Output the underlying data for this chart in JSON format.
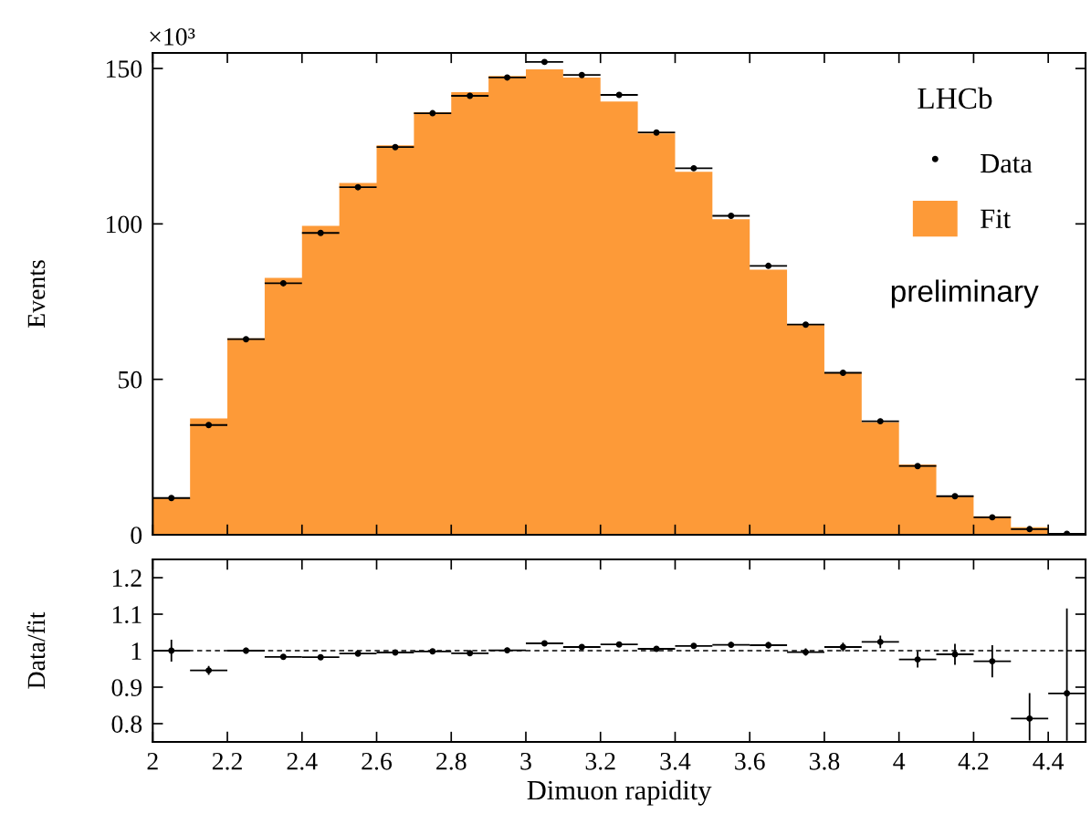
{
  "chart_data": [
    {
      "type": "histogram",
      "ylabel": "Events",
      "bins": [
        2,
        2.1,
        2.2,
        2.3,
        2.4,
        2.5,
        2.6,
        2.7,
        2.8,
        2.9,
        3,
        3.1,
        3.2,
        3.3,
        3.4,
        3.5,
        3.6,
        3.7,
        3.8,
        3.9,
        4,
        4.1,
        4.2,
        4.3,
        4.4,
        4.5
      ],
      "series": [
        {
          "name": "Fit",
          "color": "#fd9a38",
          "values": [
            11.8,
            37.4,
            63.2,
            82.6,
            99.4,
            113.2,
            125.3,
            135.9,
            142.4,
            147.6,
            149.7,
            147.1,
            139.4,
            129.1,
            116.8,
            101.5,
            85.3,
            67.6,
            52.1,
            36.2,
            22.6,
            12.6,
            5.9,
            2.4,
            0.6
          ]
        },
        {
          "name": "Data",
          "type": "scatter",
          "color": "#000000",
          "x": [
            2.05,
            2.15,
            2.25,
            2.35,
            2.45,
            2.55,
            2.65,
            2.75,
            2.85,
            2.95,
            3.05,
            3.15,
            3.25,
            3.35,
            3.45,
            3.55,
            3.65,
            3.75,
            3.85,
            3.95,
            4.05,
            4.15,
            4.25,
            4.35,
            4.45
          ],
          "values": [
            11.8,
            35.3,
            62.9,
            80.9,
            97.1,
            111.8,
            124.7,
            135.6,
            141.2,
            147.1,
            152.1,
            147.9,
            141.5,
            129.4,
            117.9,
            102.6,
            86.5,
            67.6,
            52.1,
            36.5,
            22.1,
            12.4,
            5.6,
            1.8,
            0.3
          ],
          "xerrors": [
            0.05,
            0.05,
            0.05,
            0.05,
            0.05,
            0.05,
            0.05,
            0.05,
            0.05,
            0.05,
            0.05,
            0.05,
            0.05,
            0.05,
            0.05,
            0.05,
            0.05,
            0.05,
            0.05,
            0.05,
            0.05,
            0.05,
            0.05,
            0.05,
            0.05
          ]
        }
      ],
      "xlim": [
        2,
        4.5
      ],
      "xticks": [
        2,
        2.2,
        2.4,
        2.6,
        2.8,
        3,
        3.2,
        3.4,
        3.6,
        3.8,
        4,
        4.2,
        4.4
      ],
      "ylim": [
        0,
        155
      ],
      "yticks": [
        0,
        50,
        100,
        150
      ],
      "tick_labels": "y",
      "legend": "top right",
      "marker": "circle",
      "annotations": [
        "×10³",
        "LHCb",
        "preliminary"
      ]
    },
    {
      "type": "scatter",
      "xlabel": "Dimuon rapidity",
      "ylabel": "Data/fit",
      "marker": "circle",
      "series": [
        {
          "color": "#000000",
          "x": [
            2.05,
            2.15,
            2.25,
            2.35,
            2.45,
            2.55,
            2.65,
            2.75,
            2.85,
            2.95,
            3.05,
            3.15,
            3.25,
            3.35,
            3.45,
            3.55,
            3.65,
            3.75,
            3.85,
            3.95,
            4.05,
            4.15,
            4.25,
            4.35,
            4.45
          ],
          "values": [
            1.0,
            0.946,
            1.0,
            0.983,
            0.982,
            0.992,
            0.995,
            0.998,
            0.993,
            1.001,
            1.02,
            1.01,
            1.017,
            1.005,
            1.013,
            1.016,
            1.015,
            0.996,
            1.01,
            1.024,
            0.976,
            0.99,
            0.971,
            0.814,
            0.883
          ],
          "errors": [
            0.03,
            0.012,
            0.008,
            0.006,
            0.005,
            0.005,
            0.005,
            0.005,
            0.005,
            0.005,
            0.005,
            0.005,
            0.006,
            0.006,
            0.007,
            0.008,
            0.009,
            0.01,
            0.012,
            0.017,
            0.022,
            0.029,
            0.044,
            [
              0.754,
              0.884
            ],
            [
              0.753,
              1.116
            ]
          ],
          "xerrors": [
            0.05,
            0.05,
            0.05,
            0.05,
            0.05,
            0.05,
            0.05,
            0.05,
            0.05,
            0.05,
            0.05,
            0.05,
            0.05,
            0.05,
            0.05,
            0.05,
            0.05,
            0.05,
            0.05,
            0.05,
            0.05,
            0.05,
            0.05,
            0.05,
            0.05
          ]
        }
      ],
      "xlim": [
        2,
        4.5
      ],
      "xticks": [
        2,
        2.2,
        2.4,
        2.6,
        2.8,
        3,
        3.2,
        3.4,
        3.6,
        3.8,
        4,
        4.2,
        4.4
      ],
      "ylim": [
        0.75,
        1.25
      ],
      "yticks": [
        0.8,
        0.9,
        1,
        1.1,
        1.2
      ],
      "ref_lines": [
        {
          "axis": "y",
          "value": 1,
          "color": "#000000",
          "line_style": "dashed"
        }
      ]
    }
  ]
}
